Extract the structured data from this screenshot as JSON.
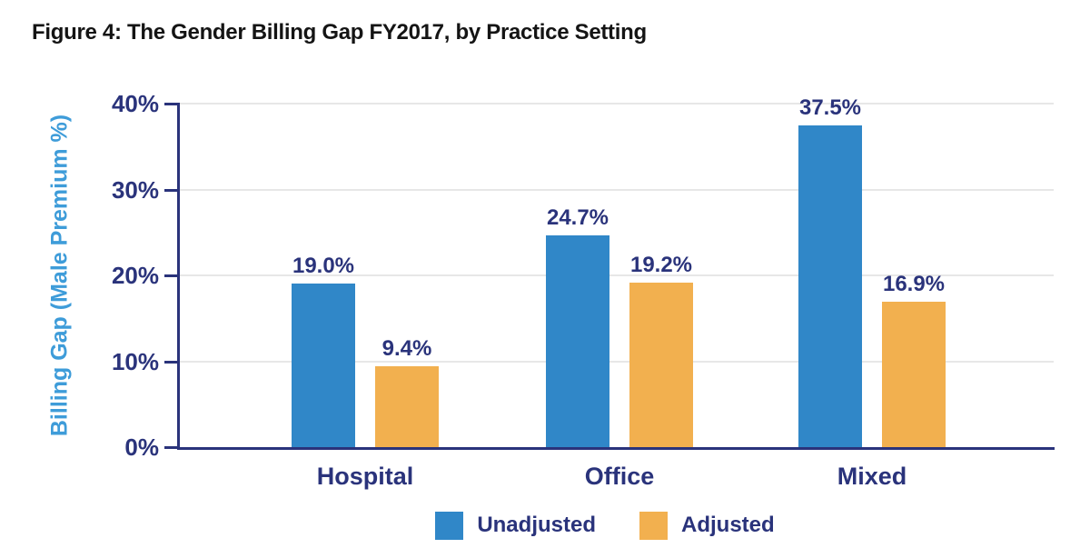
{
  "figure": {
    "title": "Figure 4: The Gender Billing Gap FY2017, by Practice Setting"
  },
  "chart_data": {
    "type": "bar",
    "title": "Figure 4: The Gender Billing Gap FY2017, by Practice Setting",
    "categories": [
      "Hospital",
      "Office",
      "Mixed"
    ],
    "series": [
      {
        "name": "Unadjusted",
        "values": [
          19.0,
          24.7,
          37.5
        ],
        "data_labels": [
          "19.0%",
          "24.7%",
          "37.5%"
        ],
        "color": "#3087C8"
      },
      {
        "name": "Adjusted",
        "values": [
          9.4,
          19.2,
          16.9
        ],
        "data_labels": [
          "9.4%",
          "19.2%",
          "16.9%"
        ],
        "color": "#F2B04F"
      }
    ],
    "xlabel": "",
    "ylabel": "Billing Gap (Male Premium %)",
    "ylim": [
      0,
      40
    ],
    "yticks": [
      {
        "value": 0,
        "label": "0%"
      },
      {
        "value": 10,
        "label": "10%"
      },
      {
        "value": 20,
        "label": "20%"
      },
      {
        "value": 30,
        "label": "30%"
      },
      {
        "value": 40,
        "label": "40%"
      }
    ],
    "grid": "horizontal-light",
    "legend_position": "bottom"
  },
  "colors": {
    "unadjusted_blue": "#3087C8",
    "adjusted_orange": "#F2B04F",
    "axis_navy": "#2A337B",
    "y_title_blue": "#3E9CD9",
    "gridline_gray": "#E7E7E7",
    "title_black": "#141414"
  }
}
